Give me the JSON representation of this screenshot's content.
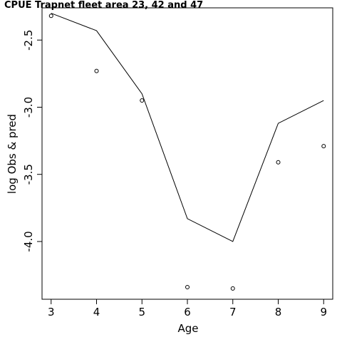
{
  "chart_data": {
    "type": "line",
    "title": "CPUE Trapnet fleet area 23, 42 and 47",
    "xlabel": "Age",
    "ylabel": "log Obs & pred",
    "x": [
      3,
      4,
      5,
      6,
      7,
      8,
      9
    ],
    "x_ticks": [
      "3",
      "4",
      "5",
      "6",
      "7",
      "8",
      "9"
    ],
    "y_ticks": [
      "-2.5",
      "-3.0",
      "-3.5",
      "-4.0"
    ],
    "y_tick_values": [
      -2.5,
      -3.0,
      -3.5,
      -4.0
    ],
    "xlim": [
      2.8,
      9.2
    ],
    "ylim": [
      -4.43,
      -2.26
    ],
    "grid": false,
    "series": [
      {
        "style": "line",
        "values": [
          -2.3,
          -2.43,
          -2.9,
          -3.83,
          -4.0,
          -3.12,
          -2.95
        ]
      },
      {
        "style": "points",
        "values": [
          -2.32,
          -2.73,
          -2.95,
          -4.34,
          -4.35,
          -3.41,
          -3.29
        ]
      }
    ]
  }
}
